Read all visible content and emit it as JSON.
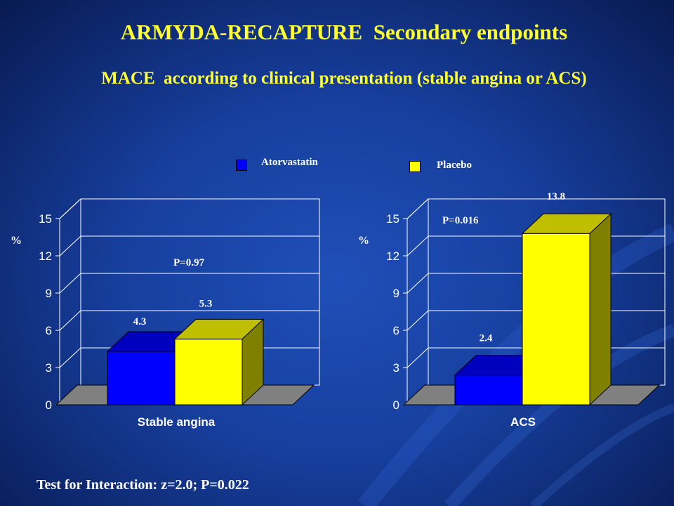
{
  "slide": {
    "title": "ARMYDA-RECAPTURE  Secondary endpoints",
    "subtitle": "MACE  according to clinical presentation (stable angina or ACS)",
    "footer": "Test for Interaction: z=2.0; P=0.022"
  },
  "legend": [
    {
      "label": "Atorvastatin",
      "color": "#0000ff"
    },
    {
      "label": "Placebo",
      "color": "#ffff00"
    }
  ],
  "colors": {
    "atorvastatin": "#0000ff",
    "placebo": "#ffff00",
    "floor": "#808080",
    "grid": "#ffffff"
  },
  "chart_data": [
    {
      "type": "bar",
      "categories": [
        "Stable angina"
      ],
      "series": [
        {
          "name": "Atorvastatin",
          "values": [
            4.3
          ]
        },
        {
          "name": "Placebo",
          "values": [
            5.3
          ]
        }
      ],
      "data_labels": [
        "4.3",
        "5.3"
      ],
      "ylabel": "%",
      "ylim": [
        0,
        15
      ],
      "yticks": [
        0,
        3,
        6,
        9,
        12,
        15
      ],
      "annotation": "P=0.97",
      "grid": true
    },
    {
      "type": "bar",
      "categories": [
        "ACS"
      ],
      "series": [
        {
          "name": "Atorvastatin",
          "values": [
            2.4
          ]
        },
        {
          "name": "Placebo",
          "values": [
            13.8
          ]
        }
      ],
      "data_labels": [
        "2.4",
        "13.8"
      ],
      "ylabel": "%",
      "ylim": [
        0,
        15
      ],
      "yticks": [
        0,
        3,
        6,
        9,
        12,
        15
      ],
      "annotation": "P=0.016",
      "grid": true
    }
  ]
}
